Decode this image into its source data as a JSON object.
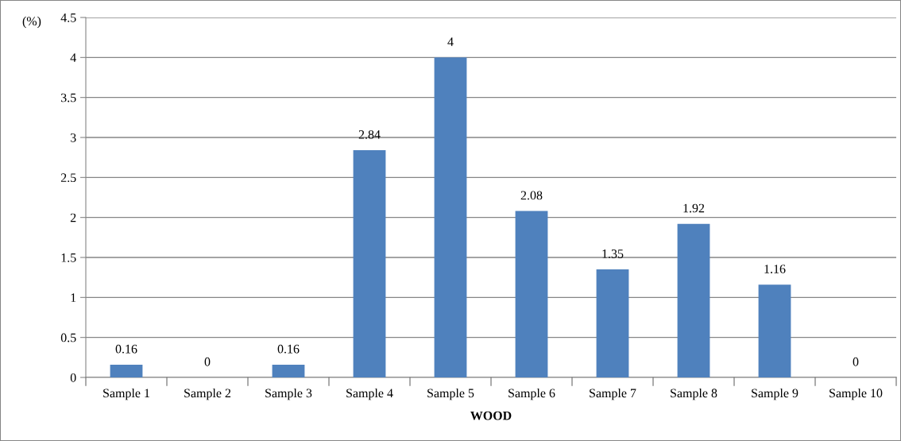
{
  "chart_data": {
    "type": "bar",
    "xlabel": "WOOD",
    "ylabel": "(%)",
    "categories": [
      "Sample 1",
      "Sample 2",
      "Sample 3",
      "Sample 4",
      "Sample 5",
      "Sample 6",
      "Sample 7",
      "Sample 8",
      "Sample 9",
      "Sample 10"
    ],
    "values": [
      0.16,
      0,
      0.16,
      2.84,
      4,
      2.08,
      1.35,
      1.92,
      1.16,
      0
    ],
    "color": "#4f81bd",
    "ylim": [
      0,
      4.5
    ],
    "yticks": [
      0,
      0.5,
      1,
      1.5,
      2,
      2.5,
      3,
      3.5,
      4,
      4.5
    ],
    "grid": "y",
    "data_labels": true,
    "legend": false
  }
}
